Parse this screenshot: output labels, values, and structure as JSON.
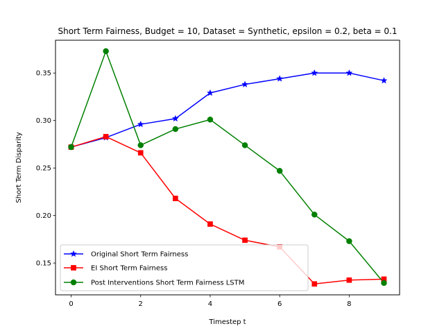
{
  "chart_data": {
    "type": "line",
    "title": "Short Term Fairness, Budget = 10, Dataset = Synthetic, epsilon = 0.2, beta = 0.1",
    "xlabel": "Timestep t",
    "ylabel": "Short Term Disparity",
    "xlim": [
      -0.45,
      9.45
    ],
    "ylim": [
      0.1165,
      0.3845
    ],
    "x": [
      0,
      1,
      2,
      3,
      4,
      5,
      6,
      7,
      8,
      9
    ],
    "xticks": [
      0,
      2,
      4,
      6,
      8
    ],
    "xtick_labels": [
      "0",
      "2",
      "4",
      "6",
      "8"
    ],
    "yticks": [
      0.15,
      0.2,
      0.25,
      0.3,
      0.35
    ],
    "ytick_labels": [
      "0.15",
      "0.20",
      "0.25",
      "0.30",
      "0.35"
    ],
    "grid": false,
    "legend_position": "lower-left",
    "series": [
      {
        "name": "Original Short Term Fairness",
        "color": "#0000ff",
        "marker": "star",
        "values": [
          0.272,
          0.282,
          0.296,
          0.302,
          0.329,
          0.338,
          0.344,
          0.35,
          0.35,
          0.342
        ]
      },
      {
        "name": "EI Short Term Fairness",
        "color": "#ff0000",
        "marker": "square",
        "values": [
          0.272,
          0.283,
          0.266,
          0.218,
          0.191,
          0.174,
          0.167,
          0.128,
          0.132,
          0.133
        ]
      },
      {
        "name": "Post Interventions Short Term Fairness LSTM",
        "color": "#008000",
        "marker": "circle",
        "values": [
          0.272,
          0.373,
          0.274,
          0.291,
          0.301,
          0.274,
          0.247,
          0.201,
          0.173,
          0.129
        ]
      }
    ]
  }
}
